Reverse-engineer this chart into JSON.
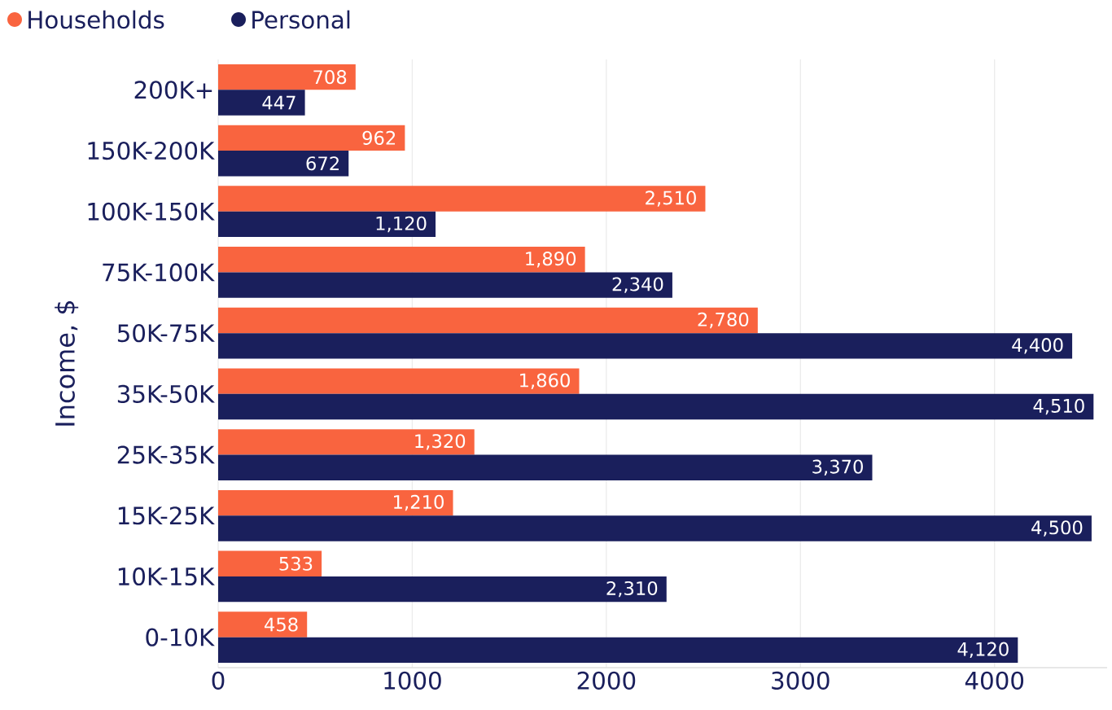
{
  "chart_data": {
    "type": "bar",
    "orientation": "horizontal",
    "ylabel": "Income, $",
    "categories": [
      "200K+",
      "150K-200K",
      "100K-150K",
      "75K-100K",
      "50K-75K",
      "35K-50K",
      "25K-35K",
      "15K-25K",
      "10K-15K",
      "0-10K"
    ],
    "series": [
      {
        "name": "Households",
        "color": "#f9643f",
        "values": [
          708,
          962,
          2510,
          1890,
          2780,
          1860,
          1320,
          1210,
          533,
          458
        ],
        "value_labels": [
          "708",
          "962",
          "2,510",
          "1,890",
          "2,780",
          "1,860",
          "1,320",
          "1,210",
          "533",
          "458"
        ]
      },
      {
        "name": "Personal",
        "color": "#1a1f5c",
        "values": [
          447,
          672,
          1120,
          2340,
          4400,
          4510,
          3370,
          4500,
          2310,
          4120
        ],
        "value_labels": [
          "447",
          "672",
          "1,120",
          "2,340",
          "4,400",
          "4,510",
          "3,370",
          "4,500",
          "2,310",
          "4,120"
        ]
      }
    ],
    "xlim": [
      0,
      4580
    ],
    "xticks": [
      0,
      1000,
      2000,
      3000,
      4000
    ],
    "grid": "x",
    "legend": "top left"
  }
}
